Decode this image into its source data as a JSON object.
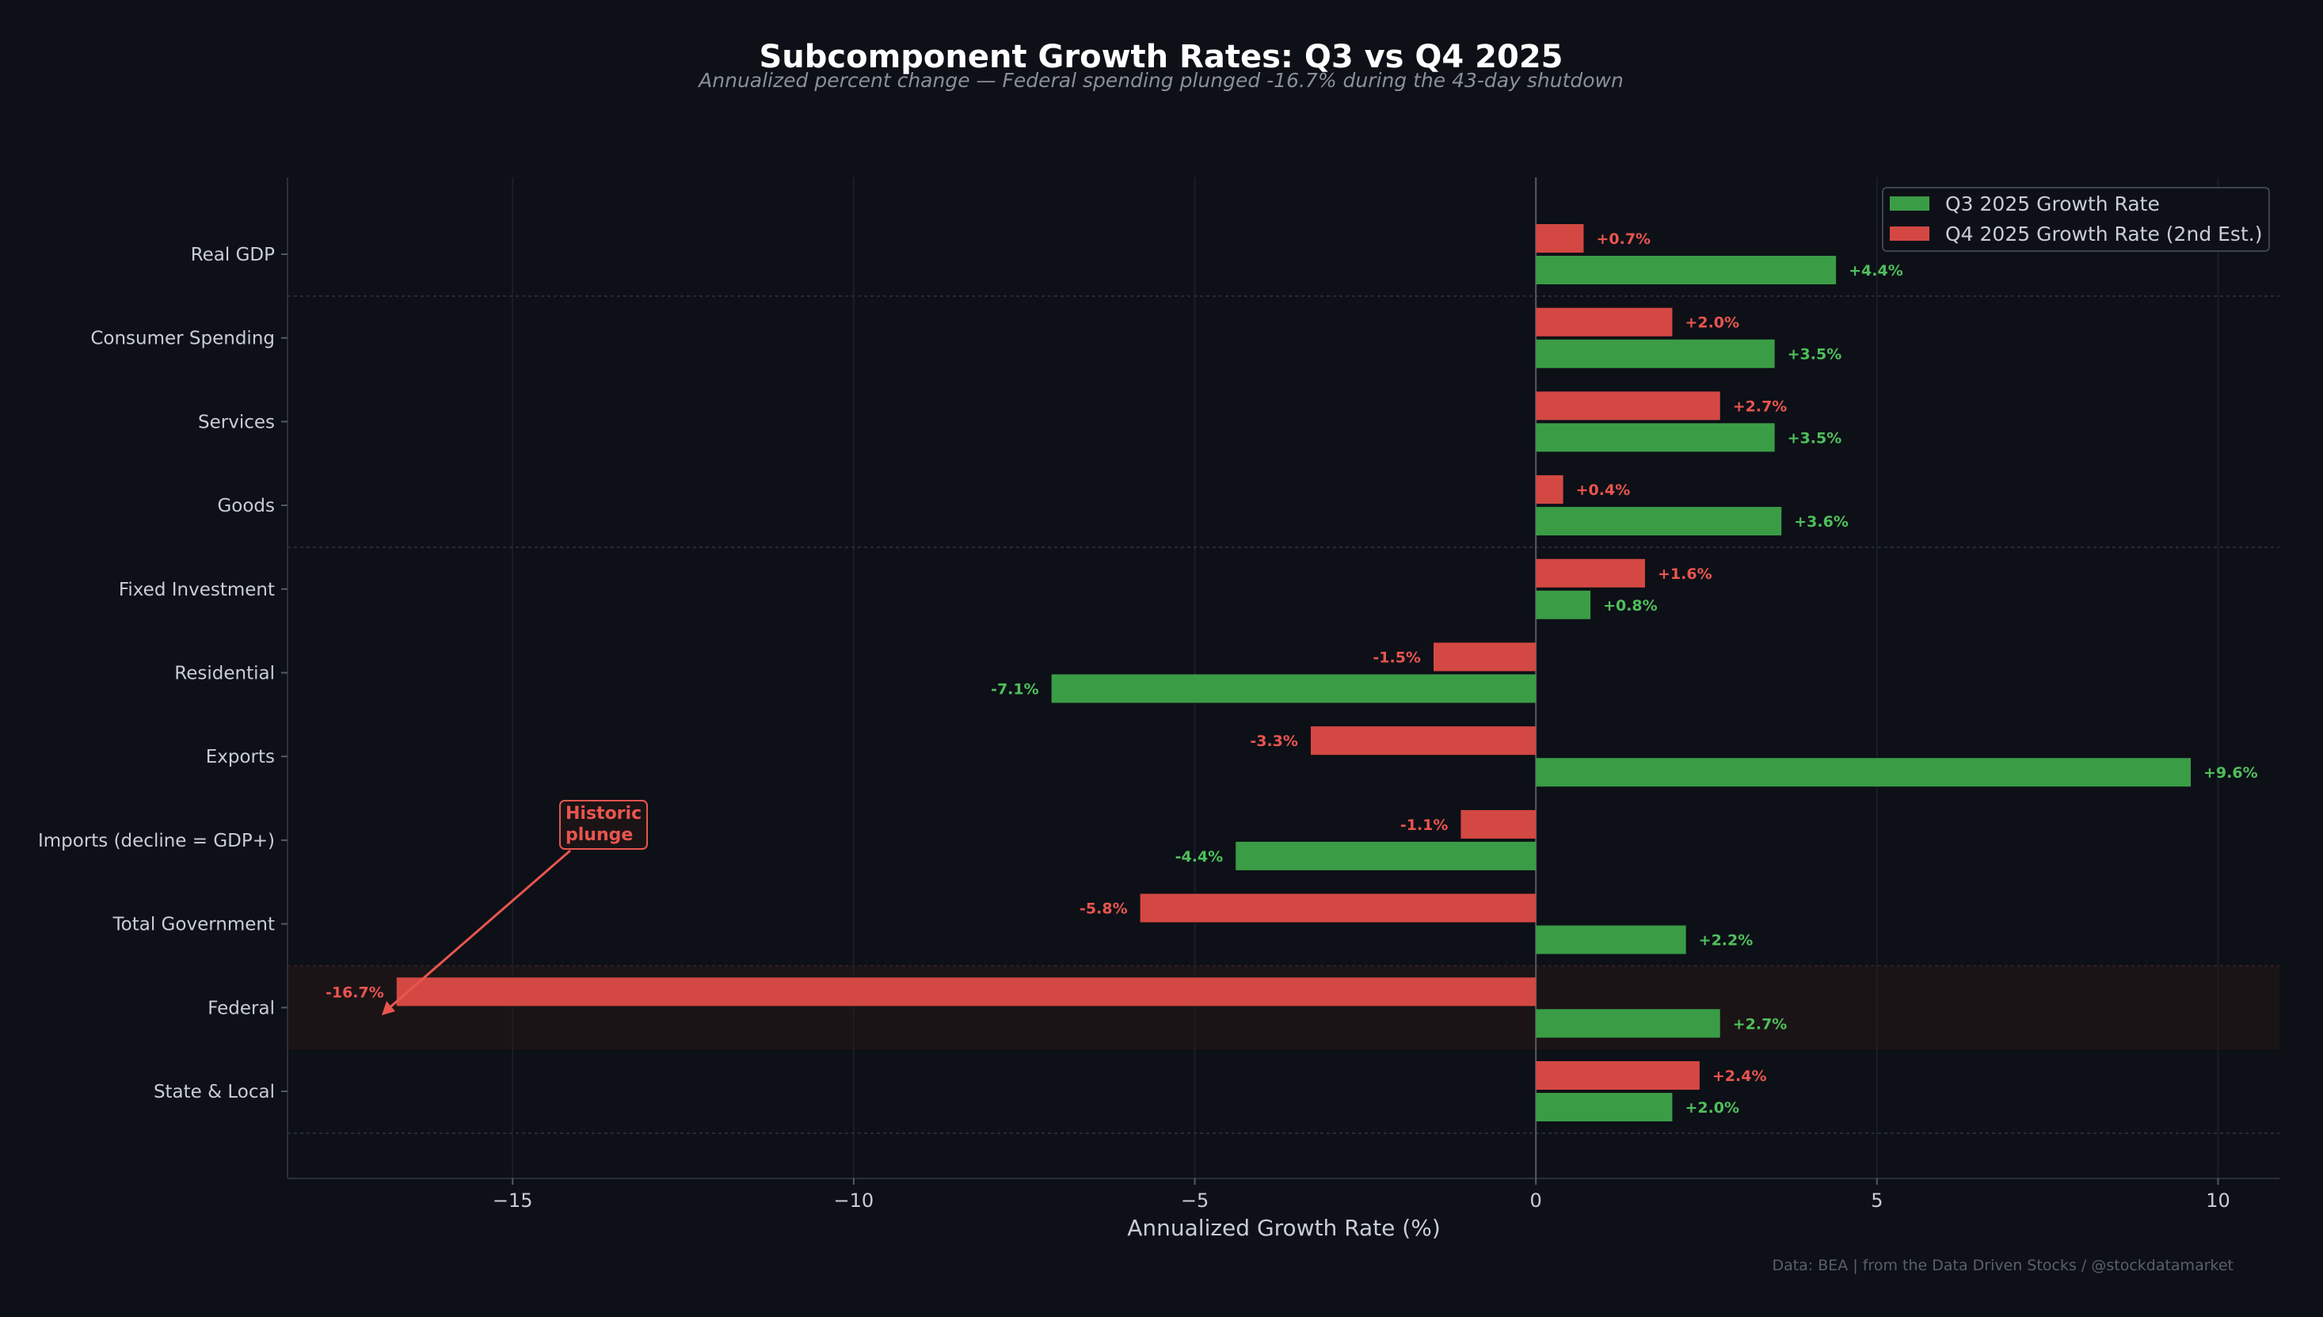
{
  "chart_data": {
    "type": "bar",
    "orientation": "horizontal",
    "title": "Subcomponent Growth Rates: Q3 vs Q4 2025",
    "subtitle": "Annualized percent change — Federal spending plunged -16.7% during the 43-day shutdown",
    "xlabel": "Annualized Growth Rate (%)",
    "ylabel": "",
    "xlim": [
      -18.3,
      10.9
    ],
    "xticks": [
      -15,
      -10,
      -5,
      0,
      5,
      10
    ],
    "xtick_labels": [
      "−15",
      "−10",
      "−5",
      "0",
      "5",
      "10"
    ],
    "categories": [
      "Real GDP",
      "Consumer Spending",
      "Services",
      "Goods",
      "Fixed Investment",
      "Residential",
      "Exports",
      "Imports (decline = GDP+)",
      "Total Government",
      "Federal",
      "State & Local"
    ],
    "series": [
      {
        "name": "Q3 2025 Growth Rate",
        "color": "#3a9d46",
        "label_color": "#4fbf5b",
        "values": [
          4.4,
          3.5,
          3.5,
          3.6,
          0.8,
          -7.1,
          9.6,
          -4.4,
          2.2,
          2.7,
          2.0
        ],
        "labels": [
          "+4.4%",
          "+3.5%",
          "+3.5%",
          "+3.6%",
          "+0.8%",
          "-7.1%",
          "+9.6%",
          "-4.4%",
          "+2.2%",
          "+2.7%",
          "+2.0%"
        ]
      },
      {
        "name": "Q4 2025 Growth Rate (2nd Est.)",
        "color": "#d44843",
        "label_color": "#e8554e",
        "values": [
          0.7,
          2.0,
          2.7,
          0.4,
          1.6,
          -1.5,
          -3.3,
          -1.1,
          -5.8,
          -16.7,
          2.4
        ],
        "labels": [
          "+0.7%",
          "+2.0%",
          "+2.7%",
          "+0.4%",
          "+1.6%",
          "-1.5%",
          "-3.3%",
          "-1.1%",
          "-5.8%",
          "-16.7%",
          "+2.4%"
        ]
      }
    ],
    "group_separators_after": [
      "Real GDP",
      "Goods",
      "State & Local"
    ],
    "highlight_category": "Federal",
    "annotation": {
      "text_lines": [
        "Historic",
        "plunge"
      ],
      "target_category": "Federal",
      "target_value": -16.7
    },
    "legend_position": "top-right",
    "grid": "vertical",
    "source_note": "Data: BEA | from the Data Driven Stocks / @stockdatamarket"
  },
  "colors": {
    "background": "#0d1017",
    "axis": "#555a63",
    "tick_label": "#c9cdd4",
    "title": "#ffffff",
    "subtitle": "#8a8f98",
    "source": "#5a5f68",
    "highlight": "#1b1416",
    "annotation": "#e8554e"
  }
}
